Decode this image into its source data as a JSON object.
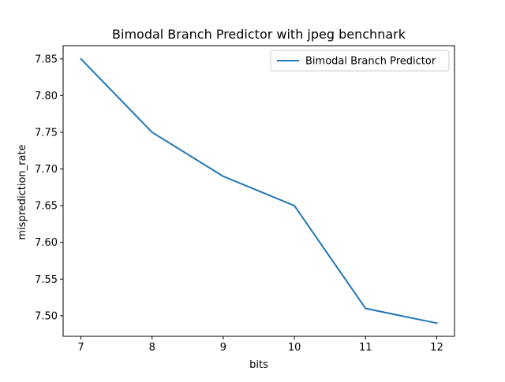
{
  "chart_data": {
    "type": "line",
    "title": "Bimodal Branch Predictor with jpeg benchnark",
    "xlabel": "bits",
    "ylabel": "misprediction_rate",
    "x": [
      7,
      8,
      9,
      10,
      11,
      12
    ],
    "series": [
      {
        "name": "Bimodal Branch Predictor",
        "values": [
          7.85,
          7.75,
          7.69,
          7.65,
          7.51,
          7.49
        ],
        "color": "#1f77b4"
      }
    ],
    "xlim": [
      6.75,
      12.25
    ],
    "ylim": [
      7.472,
      7.868
    ],
    "xticks": [
      "7",
      "8",
      "9",
      "10",
      "11",
      "12"
    ],
    "yticks": [
      "7.50",
      "7.55",
      "7.60",
      "7.65",
      "7.70",
      "7.75",
      "7.80",
      "7.85"
    ],
    "legend_position": "top-right",
    "grid": false
  }
}
